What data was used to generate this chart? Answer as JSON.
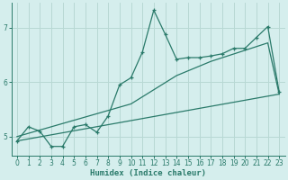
{
  "xlabel": "Humidex (Indice chaleur)",
  "xlim": [
    -0.5,
    23.5
  ],
  "ylim": [
    4.65,
    7.45
  ],
  "yticks": [
    5,
    6,
    7
  ],
  "xticks": [
    0,
    1,
    2,
    3,
    4,
    5,
    6,
    7,
    8,
    9,
    10,
    11,
    12,
    13,
    14,
    15,
    16,
    17,
    18,
    19,
    20,
    21,
    22,
    23
  ],
  "bg_color": "#d5eeed",
  "grid_color": "#b8d8d4",
  "line_color": "#2a7a6a",
  "jagged_x": [
    0,
    1,
    2,
    3,
    4,
    5,
    6,
    7,
    8,
    9,
    10,
    11,
    12,
    13,
    14,
    15,
    16,
    17,
    18,
    19,
    20,
    21,
    22,
    23
  ],
  "jagged_y": [
    4.92,
    5.18,
    5.1,
    4.82,
    4.82,
    5.18,
    5.22,
    5.08,
    5.38,
    5.95,
    6.08,
    6.55,
    7.32,
    6.88,
    6.42,
    6.45,
    6.45,
    6.48,
    6.52,
    6.62,
    6.62,
    6.82,
    7.02,
    5.82
  ],
  "trend1_x": [
    0,
    23
  ],
  "trend1_y": [
    4.92,
    5.78
  ],
  "trend2_x": [
    0,
    10,
    14,
    17,
    22,
    23
  ],
  "trend2_y": [
    5.0,
    5.6,
    6.12,
    6.38,
    6.72,
    5.78
  ],
  "font_color": "#2a7a6a"
}
